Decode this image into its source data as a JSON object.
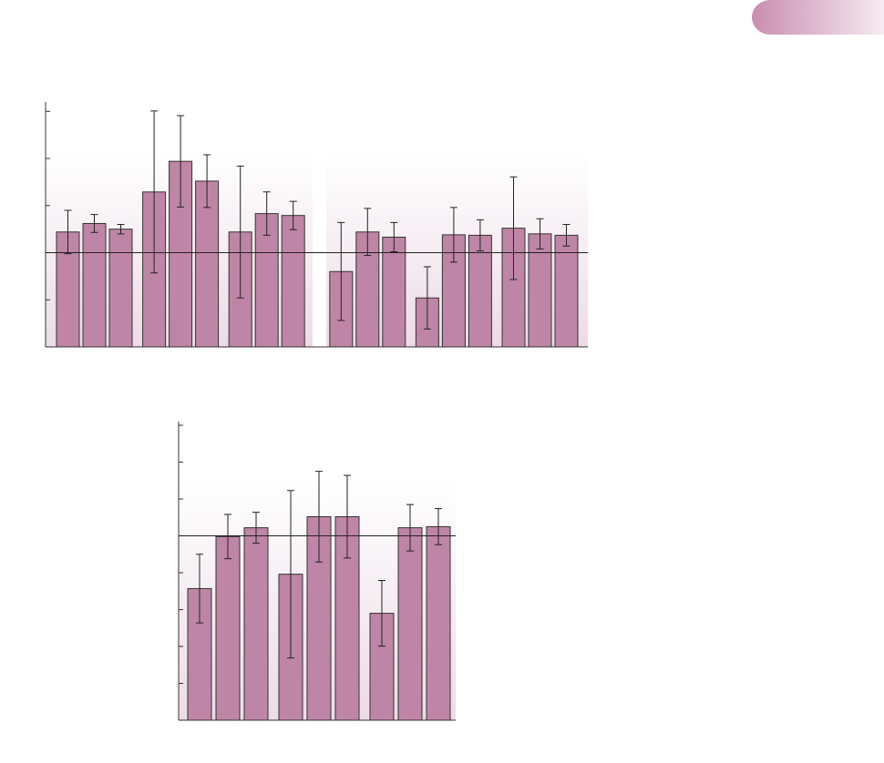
{
  "chart_data": [
    {
      "type": "bar",
      "color": "#bf85a6",
      "ylim": [
        -2,
        3.2
      ],
      "yticks": [
        -1,
        0,
        1,
        2,
        3
      ],
      "baseline": 0,
      "values": [
        0.44,
        0.62,
        0.5,
        1.29,
        1.94,
        1.52,
        0.44,
        0.83,
        0.79,
        -0.4,
        0.44,
        0.33,
        -0.96,
        0.38,
        0.37,
        0.52,
        0.4,
        0.37
      ],
      "errors": [
        0.46,
        0.19,
        0.1,
        1.72,
        0.97,
        0.56,
        1.4,
        0.46,
        0.3,
        1.04,
        0.5,
        0.31,
        0.66,
        0.58,
        0.33,
        1.09,
        0.32,
        0.23
      ]
    },
    {
      "type": "bar",
      "color": "#bf85a6",
      "ylim": [
        -5,
        3.1
      ],
      "yticks": [
        -4,
        -3,
        -2,
        -1,
        0,
        1,
        2,
        3
      ],
      "baseline": 0,
      "values": [
        -1.43,
        -0.02,
        0.22,
        -1.04,
        0.52,
        0.52,
        -2.1,
        0.22,
        0.25
      ],
      "errors": [
        0.93,
        0.6,
        0.42,
        2.27,
        1.23,
        1.12,
        0.89,
        0.63,
        0.49
      ]
    }
  ]
}
